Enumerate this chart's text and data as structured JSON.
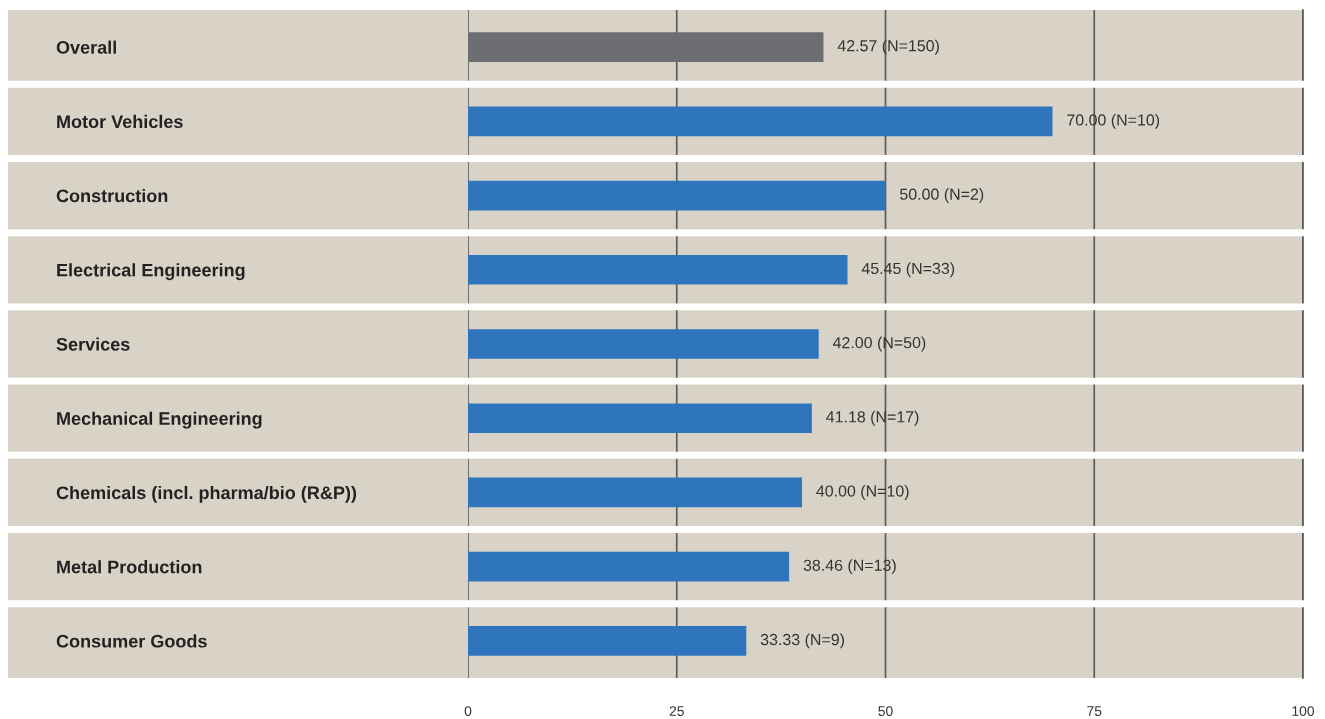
{
  "chart_data": {
    "type": "bar",
    "orientation": "horizontal",
    "categories": [
      "Overall",
      "Motor Vehicles",
      "Construction",
      "Electrical Engineering",
      "Services",
      "Mechanical Engineering",
      "Chemicals (incl. pharma/bio (R&P))",
      "Metal Production",
      "Consumer Goods"
    ],
    "values": [
      42.57,
      70.0,
      50.0,
      45.45,
      42.0,
      41.18,
      40.0,
      38.46,
      33.33
    ],
    "colors": [
      "#6d6e71",
      "#2e75bd",
      "#2e75bd",
      "#2e75bd",
      "#2e75bd",
      "#2e75bd",
      "#2e75bd",
      "#2e75bd",
      "#2e75bd"
    ],
    "value_labels": [
      "42.57 (N=150)",
      "70.00 (N=10)",
      "50.00 (N=2)",
      "45.45 (N=33)",
      "42.00 (N=50)",
      "41.18 (N=17)",
      "40.00 (N=10)",
      "38.46 (N=13)",
      "33.33 (N=9)"
    ],
    "xlim": [
      0,
      100
    ],
    "xticks": [
      0,
      25,
      50,
      75,
      100
    ],
    "grid": "x",
    "legend": false
  }
}
